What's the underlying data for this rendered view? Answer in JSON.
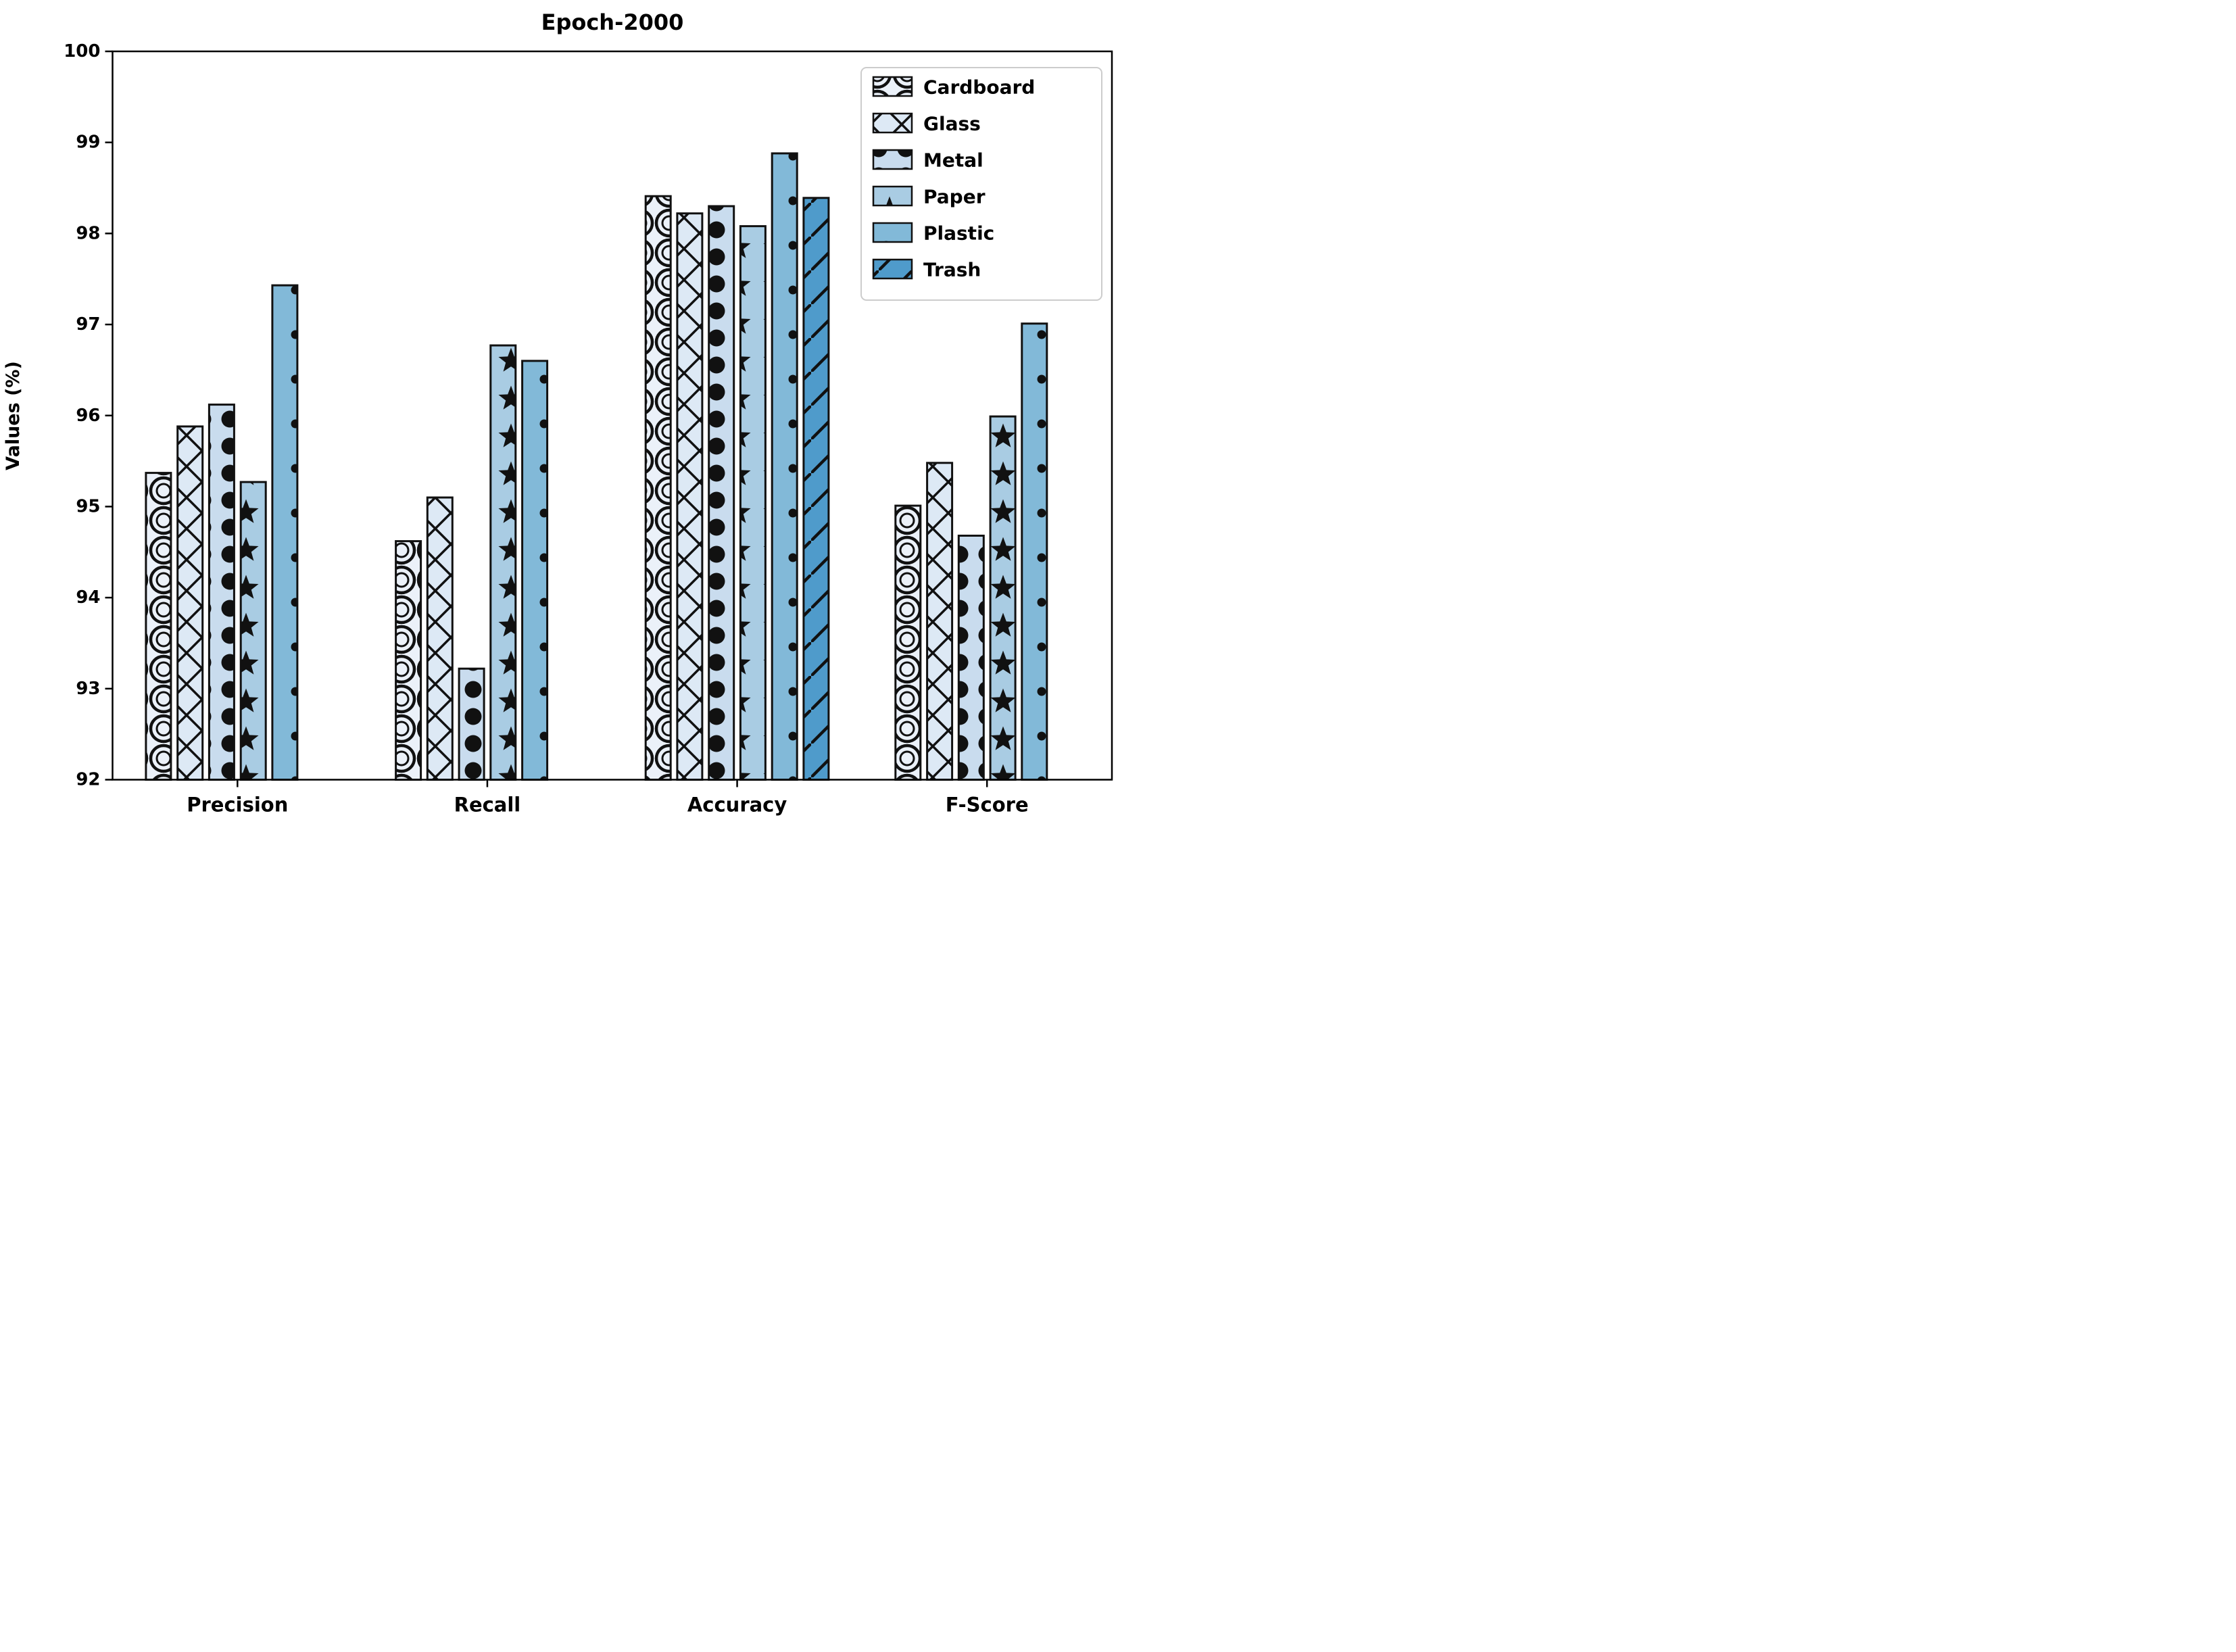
{
  "chart_data": {
    "type": "bar",
    "title": "Epoch-2000",
    "xlabel": "",
    "ylabel": "Values (%)",
    "categories": [
      "Precision",
      "Recall",
      "Accuracy",
      "F-Score"
    ],
    "ylim": [
      92,
      100
    ],
    "yticks": [
      92,
      93,
      94,
      95,
      96,
      97,
      98,
      99,
      100
    ],
    "grid": false,
    "legend_position": "upper right",
    "bar_edge_color": "#111111",
    "axis_color": "#000000",
    "series": [
      {
        "name": "Cardboard",
        "color": "#ebf1f9",
        "hatch": "rings",
        "values": [
          95.37,
          94.62,
          98.41,
          95.01
        ]
      },
      {
        "name": "Glass",
        "color": "#dde9f5",
        "hatch": "crosshatch",
        "values": [
          95.88,
          95.1,
          98.22,
          95.48
        ]
      },
      {
        "name": "Metal",
        "color": "#c9dcee",
        "hatch": "dots-large",
        "values": [
          96.12,
          93.22,
          98.3,
          94.68
        ]
      },
      {
        "name": "Paper",
        "color": "#a9cce3",
        "hatch": "stars",
        "values": [
          95.27,
          96.77,
          98.08,
          95.99
        ]
      },
      {
        "name": "Plastic",
        "color": "#82b9d8",
        "hatch": "dots-small",
        "values": [
          97.43,
          96.6,
          98.88,
          97.01
        ]
      },
      {
        "name": "Trash",
        "color": "#4f9bcb",
        "hatch": "diagonal",
        "values": [
          null,
          null,
          98.39,
          null
        ]
      }
    ]
  }
}
